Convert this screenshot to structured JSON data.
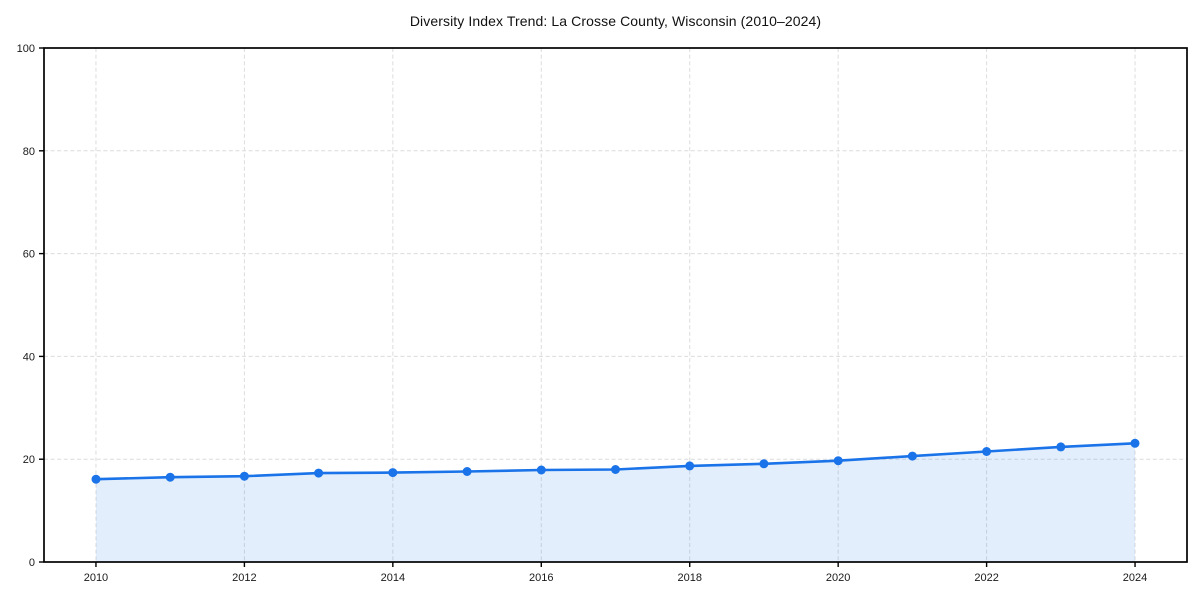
{
  "figure": {
    "background": "#ffffff"
  },
  "chart_data": {
    "type": "line",
    "title": "Diversity Index Trend: La Crosse County, Wisconsin (2010–2024)",
    "xlabel": "",
    "ylabel": "",
    "x": [
      2010,
      2011,
      2012,
      2013,
      2014,
      2015,
      2016,
      2017,
      2018,
      2019,
      2020,
      2021,
      2022,
      2023,
      2024
    ],
    "values": [
      16.1,
      16.5,
      16.7,
      17.3,
      17.4,
      17.6,
      17.9,
      18.0,
      18.7,
      19.1,
      19.7,
      20.6,
      21.5,
      22.4,
      23.1
    ],
    "xlim": [
      2009.3,
      2024.7
    ],
    "ylim": [
      0,
      100
    ],
    "xticks": [
      2010,
      2012,
      2014,
      2016,
      2018,
      2020,
      2022,
      2024
    ],
    "yticks": [
      0,
      20,
      40,
      60,
      80,
      100
    ],
    "grid": "dashed-both-axes",
    "legend": "none",
    "marker": "circle",
    "area_fill": true,
    "colors": {
      "line": "#1a73e8",
      "marker": "#1a73e8",
      "area": "#1a73e8",
      "area_opacity": 0.12,
      "grid": "#dcdcdc",
      "spine": "#000000",
      "tick_label": "#1a1a1a",
      "title": "#111111",
      "background": "#ffffff"
    }
  }
}
